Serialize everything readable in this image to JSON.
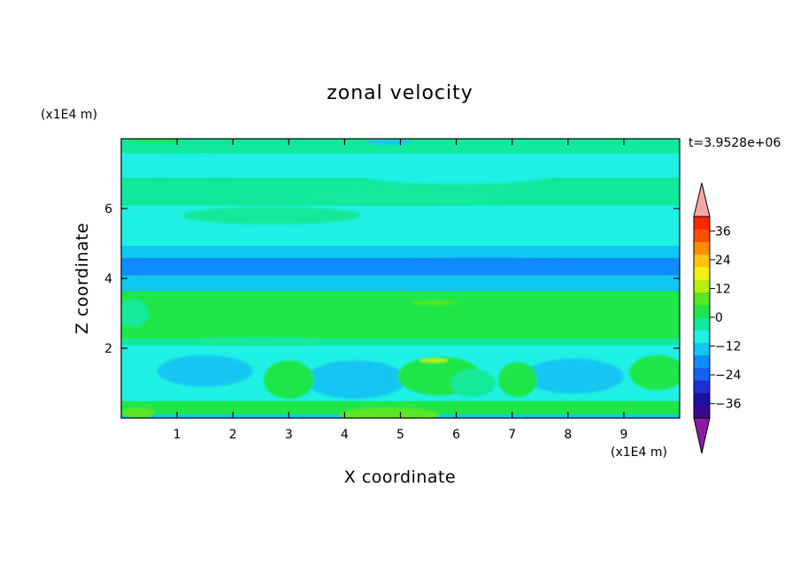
{
  "chart_data": {
    "type": "heatmap",
    "title": "zonal velocity",
    "xlabel": "X coordinate",
    "ylabel": "Z coordinate",
    "x_unit": "(x1E4 m)",
    "z_unit": "(x1E4 m)",
    "time_label": "t=3.9528e+06",
    "xlim": [
      0,
      10
    ],
    "ylim": [
      0,
      8
    ],
    "xticks": [
      1,
      2,
      3,
      4,
      5,
      6,
      7,
      8,
      9
    ],
    "yticks": [
      2,
      4,
      6
    ],
    "xtick_labels": [
      "1",
      "2",
      "3",
      "4",
      "5",
      "6",
      "7",
      "8",
      "9"
    ],
    "ytick_labels": [
      "2",
      "4",
      "6"
    ],
    "colorbar": {
      "min": -42,
      "max": 42,
      "step": 6,
      "extend": "both",
      "tick_values": [
        36,
        24,
        12,
        0,
        -12,
        -24,
        -36
      ],
      "tick_labels": [
        "36",
        "24",
        "12",
        "0",
        "−12",
        "−24",
        "−36"
      ],
      "colors": [
        "#3a0a8c",
        "#1c12a0",
        "#1f2fd6",
        "#1860f0",
        "#0f8cff",
        "#12c6f2",
        "#1ff0e4",
        "#12e89a",
        "#1ee648",
        "#5ae622",
        "#b6f010",
        "#f0f014",
        "#ffc210",
        "#ff8e00",
        "#ff5000",
        "#ff2800"
      ],
      "under_color": "#8c1ca8",
      "over_color": "#f6a8a6"
    },
    "bands": [
      {
        "z": [
          0.0,
          0.12
        ],
        "u": -9
      },
      {
        "z": [
          0.12,
          0.5
        ],
        "u": 6
      },
      {
        "z": [
          0.5,
          1.0
        ],
        "u": -3
      },
      {
        "z": [
          1.0,
          1.6
        ],
        "u": -6
      },
      {
        "z": [
          1.6,
          2.1
        ],
        "u": -3
      },
      {
        "z": [
          2.1,
          2.3
        ],
        "u": 3
      },
      {
        "z": [
          2.3,
          3.3
        ],
        "u": 9
      },
      {
        "z": [
          3.3,
          3.65
        ],
        "u": 6
      },
      {
        "z": [
          3.65,
          4.1
        ],
        "u": -9
      },
      {
        "z": [
          4.1,
          4.6
        ],
        "u": -15
      },
      {
        "z": [
          4.6,
          4.95
        ],
        "u": -9
      },
      {
        "z": [
          4.95,
          5.5
        ],
        "u": -3
      },
      {
        "z": [
          5.5,
          6.1
        ],
        "u": -3
      },
      {
        "z": [
          6.1,
          6.9
        ],
        "u": 3
      },
      {
        "z": [
          6.9,
          7.6
        ],
        "u": -3
      },
      {
        "z": [
          7.6,
          8.0
        ],
        "u": 3
      }
    ],
    "blobs": [
      {
        "x": 1.5,
        "z": 1.35,
        "rx": 0.85,
        "rz": 0.45,
        "u": -9
      },
      {
        "x": 4.2,
        "z": 1.1,
        "rx": 0.9,
        "rz": 0.55,
        "u": -9
      },
      {
        "x": 8.1,
        "z": 1.2,
        "rx": 0.9,
        "rz": 0.5,
        "u": -9
      },
      {
        "x": 3.0,
        "z": 1.1,
        "rx": 0.45,
        "rz": 0.55,
        "u": 9
      },
      {
        "x": 5.7,
        "z": 1.2,
        "rx": 0.75,
        "rz": 0.55,
        "u": 9
      },
      {
        "x": 6.3,
        "z": 1.0,
        "rx": 0.4,
        "rz": 0.4,
        "u": 3
      },
      {
        "x": 7.1,
        "z": 1.1,
        "rx": 0.35,
        "rz": 0.5,
        "u": 9
      },
      {
        "x": 9.6,
        "z": 1.3,
        "rx": 0.5,
        "rz": 0.5,
        "u": 9
      },
      {
        "x": 4.8,
        "z": 0.1,
        "rx": 0.9,
        "rz": 0.2,
        "u": 12
      },
      {
        "x": 0.3,
        "z": 0.15,
        "rx": 0.3,
        "rz": 0.15,
        "u": 12
      },
      {
        "x": 5.6,
        "z": 1.65,
        "rx": 0.25,
        "rz": 0.06,
        "u": 18
      },
      {
        "x": 5.6,
        "z": 3.3,
        "rx": 0.4,
        "rz": 0.06,
        "u": 12
      },
      {
        "x": 0.25,
        "z": 4.3,
        "rx": 0.3,
        "rz": 0.1,
        "u": -15
      },
      {
        "x": 6.5,
        "z": 4.4,
        "rx": 1.5,
        "rz": 0.18,
        "u": -18
      },
      {
        "x": 2.7,
        "z": 5.8,
        "rx": 1.6,
        "rz": 0.25,
        "u": 3
      },
      {
        "x": 1.2,
        "z": 7.2,
        "rx": 1.0,
        "rz": 0.3,
        "u": -3
      },
      {
        "x": 6.0,
        "z": 7.0,
        "rx": 1.8,
        "rz": 0.3,
        "u": -3
      },
      {
        "x": 5.0,
        "z": 6.3,
        "rx": 2.0,
        "rz": 0.2,
        "u": 3
      },
      {
        "x": 0.2,
        "z": 3.0,
        "rx": 0.3,
        "rz": 0.4,
        "u": 3
      },
      {
        "x": 2.5,
        "z": 2.2,
        "rx": 1.2,
        "rz": 0.12,
        "u": 0
      },
      {
        "x": 4.8,
        "z": 7.9,
        "rx": 0.4,
        "rz": 0.08,
        "u": -9
      },
      {
        "x": 0.6,
        "z": 7.95,
        "rx": 0.5,
        "rz": 0.05,
        "u": 9
      }
    ]
  }
}
